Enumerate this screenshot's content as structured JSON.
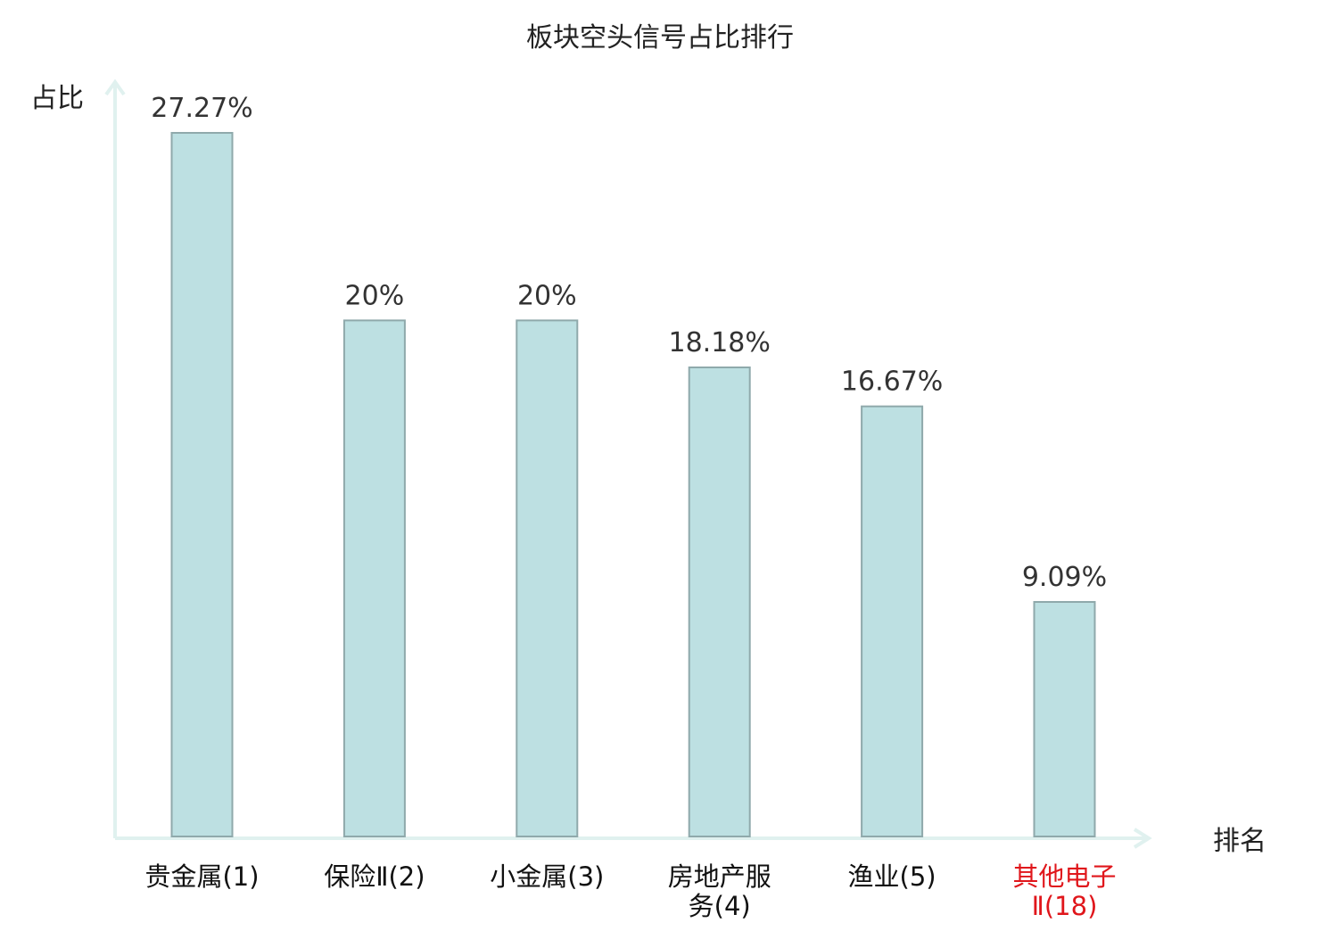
{
  "chart_data": {
    "type": "bar",
    "title": "板块空头信号占比排行",
    "ylabel": "占比",
    "xlabel": "排名",
    "categories": [
      [
        "贵金属(1)"
      ],
      [
        "保险Ⅱ(2)"
      ],
      [
        "小金属(3)"
      ],
      [
        "房地产服",
        "务(4)"
      ],
      [
        "渔业(5)"
      ],
      [
        "其他电子",
        "Ⅱ(18)"
      ]
    ],
    "values": [
      27.27,
      20,
      20,
      18.18,
      16.67,
      9.09
    ],
    "value_labels": [
      "27.27%",
      "20%",
      "20%",
      "18.18%",
      "16.67%",
      "9.09%"
    ],
    "highlight_index": 5,
    "ylim": [
      0,
      30
    ],
    "grid": false,
    "legend": "none",
    "colors": {
      "bar_fill": "#bde0e2",
      "bar_stroke": "#8fa9ab",
      "axis": "#e0f1ef",
      "text": "#333333",
      "highlight_text": "#e0161b"
    }
  }
}
